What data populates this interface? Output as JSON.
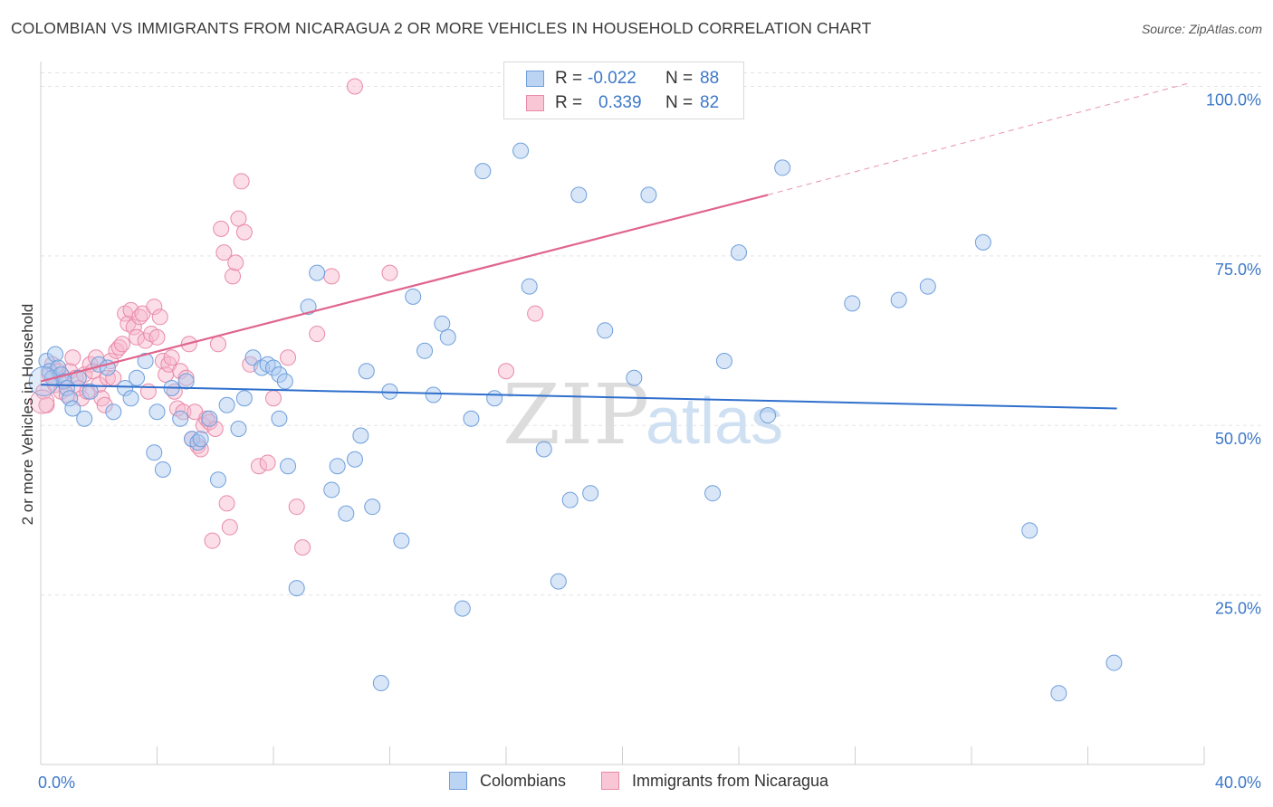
{
  "header": {
    "title": "COLOMBIAN VS IMMIGRANTS FROM NICARAGUA 2 OR MORE VEHICLES IN HOUSEHOLD CORRELATION CHART",
    "source": "Source: ZipAtlas.com"
  },
  "colors": {
    "blue_fill": "#a9c8f0",
    "blue_stroke": "#6f9fdc",
    "blue_line": "#2f6fcc",
    "pink_fill": "#f6b6cb",
    "pink_stroke": "#e98aa8",
    "pink_line": "#e0648c",
    "grid": "#e3e3e3",
    "axis_label": "#3c78c8"
  },
  "legend": {
    "r_label": "R =",
    "n_label": "N =",
    "series": [
      {
        "r": "-0.022",
        "n": "88"
      },
      {
        "r": "0.339",
        "n": "82"
      }
    ]
  },
  "watermark": {
    "zip": "ZIP",
    "atlas": "atlas"
  },
  "chart_data": {
    "type": "scatter",
    "title": "COLOMBIAN VS IMMIGRANTS FROM NICARAGUA 2 OR MORE VEHICLES IN HOUSEHOLD CORRELATION CHART",
    "xlabel": "",
    "ylabel": "2 or more Vehicles in Household",
    "xlim": [
      0,
      40
    ],
    "ylim": [
      0,
      105
    ],
    "x_tick_labels": [
      "0.0%",
      "40.0%"
    ],
    "y_ticks": [
      25,
      50,
      75,
      100
    ],
    "y_tick_labels": [
      "25.0%",
      "50.0%",
      "75.0%",
      "100.0%"
    ],
    "grid": true,
    "legend_position": "top-center",
    "series": [
      {
        "name": "Colombians",
        "color": "#a9c8f0",
        "trend": {
          "x": [
            0,
            37
          ],
          "y": [
            56.0,
            52.5
          ],
          "r": -0.022,
          "n": 88
        },
        "points": [
          [
            0.2,
            59.5
          ],
          [
            0.3,
            58.0
          ],
          [
            0.4,
            57.0
          ],
          [
            0.5,
            60.5
          ],
          [
            0.6,
            58.5
          ],
          [
            0.7,
            57.5
          ],
          [
            0.8,
            56.5
          ],
          [
            0.9,
            55.5
          ],
          [
            1.0,
            54.0
          ],
          [
            1.1,
            52.5
          ],
          [
            1.3,
            57.0
          ],
          [
            1.5,
            51.0
          ],
          [
            1.7,
            55.0
          ],
          [
            2.0,
            59.0
          ],
          [
            2.3,
            58.5
          ],
          [
            2.5,
            52.0
          ],
          [
            2.9,
            55.5
          ],
          [
            3.1,
            54.0
          ],
          [
            3.3,
            57.0
          ],
          [
            3.6,
            59.5
          ],
          [
            3.9,
            46.0
          ],
          [
            4.0,
            52.0
          ],
          [
            4.2,
            43.5
          ],
          [
            4.5,
            55.5
          ],
          [
            4.8,
            51.0
          ],
          [
            5.0,
            56.5
          ],
          [
            5.2,
            48.0
          ],
          [
            5.4,
            47.5
          ],
          [
            5.5,
            48.0
          ],
          [
            5.8,
            51.0
          ],
          [
            6.1,
            42.0
          ],
          [
            6.4,
            53.0
          ],
          [
            6.8,
            49.5
          ],
          [
            7.0,
            54.0
          ],
          [
            7.3,
            60.0
          ],
          [
            7.6,
            58.5
          ],
          [
            7.8,
            59.0
          ],
          [
            8.0,
            58.5
          ],
          [
            8.2,
            57.5
          ],
          [
            8.4,
            56.5
          ],
          [
            8.2,
            51.0
          ],
          [
            8.5,
            44.0
          ],
          [
            8.8,
            26.0
          ],
          [
            9.2,
            67.5
          ],
          [
            9.5,
            72.5
          ],
          [
            10.0,
            40.5
          ],
          [
            10.2,
            44.0
          ],
          [
            10.5,
            37.0
          ],
          [
            10.8,
            45.0
          ],
          [
            11.0,
            48.5
          ],
          [
            11.2,
            58.0
          ],
          [
            11.4,
            38.0
          ],
          [
            11.7,
            12.0
          ],
          [
            12.0,
            55.0
          ],
          [
            12.4,
            33.0
          ],
          [
            12.8,
            69.0
          ],
          [
            13.2,
            61.0
          ],
          [
            13.5,
            54.5
          ],
          [
            13.8,
            65.0
          ],
          [
            14.0,
            63.0
          ],
          [
            14.5,
            23.0
          ],
          [
            14.8,
            51.0
          ],
          [
            15.2,
            87.5
          ],
          [
            15.6,
            54.0
          ],
          [
            16.5,
            90.5
          ],
          [
            16.8,
            70.5
          ],
          [
            17.3,
            46.5
          ],
          [
            17.8,
            27.0
          ],
          [
            18.2,
            39.0
          ],
          [
            18.5,
            84.0
          ],
          [
            18.9,
            40.0
          ],
          [
            19.4,
            64.0
          ],
          [
            20.4,
            57.0
          ],
          [
            20.9,
            84.0
          ],
          [
            23.1,
            40.0
          ],
          [
            23.5,
            59.5
          ],
          [
            24.0,
            75.5
          ],
          [
            25.0,
            51.5
          ],
          [
            25.5,
            88.0
          ],
          [
            27.9,
            68.0
          ],
          [
            29.5,
            68.5
          ],
          [
            30.5,
            70.5
          ],
          [
            32.4,
            77.0
          ],
          [
            34.0,
            34.5
          ],
          [
            35.0,
            10.5
          ],
          [
            36.9,
            15.0
          ]
        ]
      },
      {
        "name": "Immigrants from Nicaragua",
        "color": "#f6b6cb",
        "trend": {
          "x": [
            0,
            25
          ],
          "y": [
            56.5,
            84.0
          ],
          "r": 0.339,
          "n": 82
        },
        "trend_dashed": {
          "x": [
            25,
            39.5
          ],
          "y": [
            84.0,
            100.5
          ]
        },
        "points": [
          [
            0.1,
            55.0
          ],
          [
            0.2,
            53.0
          ],
          [
            0.3,
            57.5
          ],
          [
            0.4,
            59.0
          ],
          [
            0.5,
            56.0
          ],
          [
            0.6,
            58.0
          ],
          [
            0.7,
            55.0
          ],
          [
            0.8,
            57.0
          ],
          [
            0.9,
            54.5
          ],
          [
            1.0,
            58.0
          ],
          [
            1.1,
            60.0
          ],
          [
            1.2,
            57.0
          ],
          [
            1.3,
            55.5
          ],
          [
            1.4,
            54.0
          ],
          [
            1.5,
            57.5
          ],
          [
            1.6,
            55.0
          ],
          [
            1.7,
            59.0
          ],
          [
            1.8,
            58.0
          ],
          [
            1.9,
            60.0
          ],
          [
            2.0,
            56.0
          ],
          [
            2.1,
            54.0
          ],
          [
            2.2,
            53.0
          ],
          [
            2.3,
            57.0
          ],
          [
            2.4,
            59.5
          ],
          [
            2.5,
            57.0
          ],
          [
            2.6,
            61.0
          ],
          [
            2.7,
            61.5
          ],
          [
            2.8,
            62.0
          ],
          [
            2.9,
            66.5
          ],
          [
            3.0,
            65.0
          ],
          [
            3.1,
            67.0
          ],
          [
            3.2,
            64.5
          ],
          [
            3.3,
            63.0
          ],
          [
            3.4,
            66.0
          ],
          [
            3.5,
            66.5
          ],
          [
            3.6,
            62.5
          ],
          [
            3.7,
            55.0
          ],
          [
            3.8,
            63.5
          ],
          [
            3.9,
            67.5
          ],
          [
            4.0,
            63.0
          ],
          [
            4.1,
            66.0
          ],
          [
            4.2,
            59.5
          ],
          [
            4.3,
            57.5
          ],
          [
            4.4,
            59.0
          ],
          [
            4.5,
            60.0
          ],
          [
            4.6,
            55.0
          ],
          [
            4.7,
            52.5
          ],
          [
            4.8,
            58.0
          ],
          [
            4.9,
            52.0
          ],
          [
            5.0,
            57.0
          ],
          [
            5.1,
            62.0
          ],
          [
            5.2,
            48.0
          ],
          [
            5.3,
            52.0
          ],
          [
            5.4,
            47.0
          ],
          [
            5.5,
            46.5
          ],
          [
            5.6,
            50.0
          ],
          [
            5.7,
            51.0
          ],
          [
            5.8,
            50.5
          ],
          [
            5.9,
            33.0
          ],
          [
            6.0,
            49.5
          ],
          [
            6.1,
            62.0
          ],
          [
            6.2,
            79.0
          ],
          [
            6.3,
            75.5
          ],
          [
            6.4,
            38.5
          ],
          [
            6.5,
            35.0
          ],
          [
            6.6,
            72.0
          ],
          [
            6.7,
            74.0
          ],
          [
            6.8,
            80.5
          ],
          [
            6.9,
            86.0
          ],
          [
            7.0,
            78.5
          ],
          [
            7.2,
            59.0
          ],
          [
            7.5,
            44.0
          ],
          [
            7.8,
            44.5
          ],
          [
            8.0,
            54.0
          ],
          [
            8.5,
            60.0
          ],
          [
            8.8,
            38.0
          ],
          [
            9.0,
            32.0
          ],
          [
            9.5,
            63.5
          ],
          [
            10.0,
            72.0
          ],
          [
            10.8,
            100.0
          ],
          [
            12.0,
            72.5
          ],
          [
            16.0,
            58.0
          ],
          [
            17.0,
            66.5
          ]
        ]
      }
    ]
  },
  "bottom_legend": {
    "items": [
      "Colombians",
      "Immigrants from Nicaragua"
    ]
  }
}
